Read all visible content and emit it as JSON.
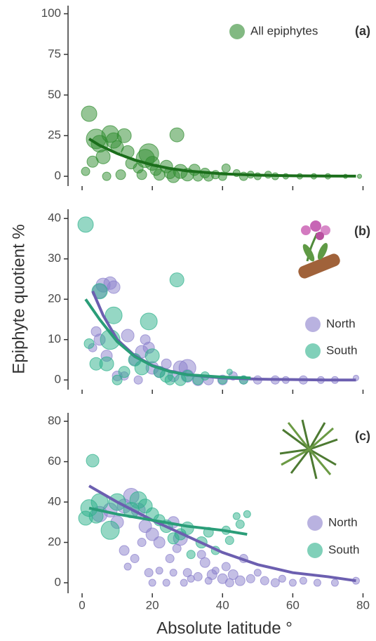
{
  "chart_data": [
    {
      "type": "scatter",
      "label": "(a)",
      "xlim": [
        -4,
        82.5
      ],
      "xticks": [
        0,
        20,
        40,
        60,
        80
      ],
      "show_xticklabels": false,
      "ylim": [
        -6,
        105
      ],
      "yticks": [
        0,
        25,
        50,
        75,
        100
      ],
      "legend": "top-right",
      "series": [
        {
          "name": "All epiphytes",
          "color": "#2e8b2e",
          "x": [
            2,
            4,
            5,
            3,
            6,
            8,
            9,
            10,
            12,
            13,
            14,
            16,
            18,
            19,
            20,
            21,
            22,
            24,
            25,
            27,
            28,
            30,
            32,
            33,
            35,
            38,
            40,
            41,
            44,
            46,
            48,
            50,
            53,
            55,
            58,
            62,
            66,
            70,
            75,
            79,
            1,
            7,
            11,
            17,
            26,
            36
          ],
          "values": [
            38.5,
            23,
            20,
            9,
            12,
            26,
            22,
            18,
            25,
            15,
            8,
            5,
            11,
            14,
            8,
            4,
            1,
            6,
            2,
            25.5,
            3,
            1,
            4,
            0,
            2,
            1,
            0,
            5,
            2,
            0,
            1,
            0,
            1,
            0,
            0,
            0,
            0,
            0,
            0,
            0,
            3,
            0,
            1,
            1,
            0,
            0
          ],
          "sizes": [
            11,
            14,
            12,
            8,
            10,
            12,
            11,
            9,
            10,
            9,
            8,
            7,
            13,
            14,
            10,
            8,
            8,
            9,
            8,
            10,
            10,
            9,
            8,
            7,
            7,
            6,
            6,
            6,
            5,
            6,
            5,
            5,
            5,
            5,
            4,
            4,
            4,
            4,
            3,
            3,
            6,
            6,
            7,
            7,
            9,
            7
          ],
          "fit": {
            "color": "#1b6e1b",
            "x": [
              2,
              5,
              10,
              15,
              20,
              25,
              30,
              40,
              50,
              60,
              70,
              78
            ],
            "values": [
              23,
              19,
              14,
              10,
              7,
              4.8,
              3.3,
              1.5,
              0.7,
              0.3,
              0.15,
              0.1
            ]
          }
        }
      ]
    },
    {
      "type": "scatter",
      "label": "(b)",
      "ylabel": "Epiphyte quotient %",
      "xlim": [
        -4,
        82.5
      ],
      "xticks": [
        0,
        20,
        40,
        60,
        80
      ],
      "show_xticklabels": false,
      "ylim": [
        -2.4,
        42.3
      ],
      "yticks": [
        0,
        10,
        20,
        30,
        40
      ],
      "legend": "right",
      "series": [
        {
          "name": "North",
          "color": "#8a7fcc",
          "x": [
            5,
            6,
            8,
            9,
            4,
            5,
            7,
            3,
            10,
            13,
            15,
            17,
            18,
            19,
            20,
            22,
            24,
            26,
            28,
            30,
            33,
            36,
            40,
            43,
            46,
            50,
            55,
            58,
            63,
            68,
            72,
            78,
            12,
            16,
            30
          ],
          "values": [
            22,
            23.5,
            24,
            23,
            12,
            10,
            6,
            8,
            1,
            11,
            5,
            7,
            10,
            8,
            3,
            2,
            4,
            1,
            3,
            1,
            0,
            0,
            0,
            1,
            0,
            0,
            0,
            0,
            0,
            0,
            0,
            0.5,
            1,
            0,
            3
          ],
          "sizes": [
            10,
            10,
            9,
            9,
            7,
            8,
            8,
            6,
            7,
            9,
            8,
            9,
            7,
            8,
            9,
            8,
            7,
            8,
            10,
            9,
            8,
            7,
            7,
            6,
            6,
            6,
            6,
            5,
            6,
            5,
            5,
            4,
            6,
            6,
            12
          ],
          "fit": {
            "color": "#6c5fb0",
            "x": [
              3,
              6,
              10,
              15,
              20,
              25,
              30,
              40,
              50,
              60,
              70,
              78
            ],
            "values": [
              22,
              16,
              10,
              6,
              3.6,
              2.2,
              1.3,
              0.5,
              0.2,
              0.1,
              0,
              0
            ]
          }
        },
        {
          "name": "South",
          "color": "#2bb08a",
          "x": [
            1,
            27,
            5,
            9,
            4,
            7,
            8,
            12,
            15,
            17,
            19,
            20,
            22,
            24,
            25,
            28,
            30,
            33,
            35,
            40,
            42,
            46,
            2,
            10
          ],
          "values": [
            38.5,
            24.8,
            22,
            16,
            4,
            4,
            10,
            2,
            5,
            3,
            14.5,
            6,
            2,
            1,
            0,
            0,
            1,
            0,
            1,
            0,
            2,
            0,
            9,
            0
          ],
          "sizes": [
            11,
            10,
            11,
            12,
            9,
            10,
            14,
            8,
            9,
            10,
            12,
            10,
            8,
            9,
            7,
            8,
            8,
            7,
            6,
            6,
            4,
            6,
            7,
            7
          ],
          "fit": {
            "color": "#2a9d78",
            "x": [
              1,
              5,
              10,
              15,
              20,
              25,
              30,
              40,
              48
            ],
            "values": [
              20,
              15,
              9.5,
              5.8,
              3.5,
              2.1,
              1.3,
              0.7,
              0.5
            ]
          }
        }
      ]
    },
    {
      "type": "scatter",
      "label": "(c)",
      "xlabel": "Absolute latitude °",
      "xlim": [
        -4,
        82.5
      ],
      "xticks": [
        0,
        20,
        40,
        60,
        80
      ],
      "show_xticklabels": true,
      "ylim": [
        -5.2,
        84.2
      ],
      "yticks": [
        0,
        20,
        40,
        60,
        80
      ],
      "legend": "right",
      "series": [
        {
          "name": "North",
          "color": "#8a7fcc",
          "x": [
            5,
            8,
            10,
            12,
            14,
            16,
            18,
            20,
            22,
            12,
            15,
            13,
            17,
            19,
            20,
            22,
            24,
            25,
            26,
            27,
            28,
            29,
            30,
            31,
            33,
            34,
            35,
            36,
            37,
            38,
            40,
            41,
            42,
            43,
            45,
            46,
            48,
            50,
            52,
            55,
            57,
            60,
            63,
            67,
            72,
            78,
            26
          ],
          "values": [
            34,
            36,
            30,
            38,
            43,
            36,
            28,
            24,
            20,
            16,
            12,
            8,
            20,
            5,
            0,
            6,
            0,
            12,
            5,
            17,
            22,
            0,
            5,
            2,
            3,
            14,
            10,
            1,
            4,
            6,
            2,
            8,
            0,
            4,
            1,
            12,
            2,
            5,
            1,
            0,
            2,
            0,
            1,
            0,
            0,
            1,
            30
          ],
          "sizes": [
            11,
            10,
            9,
            10,
            11,
            10,
            9,
            9,
            8,
            7,
            6,
            5,
            6,
            6,
            5,
            5,
            5,
            6,
            5,
            6,
            10,
            5,
            6,
            5,
            6,
            6,
            7,
            5,
            7,
            5,
            7,
            6,
            6,
            7,
            7,
            6,
            6,
            5,
            6,
            6,
            5,
            5,
            5,
            5,
            5,
            5,
            8
          ],
          "fit": {
            "color": "#6c5fb0",
            "x": [
              2,
              10,
              20,
              30,
              40,
              50,
              60,
              70,
              78
            ],
            "values": [
              48,
              40,
              31,
              23,
              15,
              9,
              5,
              3,
              1
            ]
          }
        },
        {
          "name": "South",
          "color": "#2bb08a",
          "x": [
            1,
            2,
            3,
            5,
            4,
            8,
            10,
            14,
            16,
            18,
            20,
            22,
            24,
            26,
            28,
            30,
            31,
            34,
            36,
            38,
            41,
            42,
            44,
            45,
            47
          ],
          "values": [
            32,
            37,
            60.5,
            40,
            33,
            26,
            40,
            36,
            41,
            38,
            34,
            31,
            28,
            22,
            24,
            27,
            14,
            20,
            25,
            16,
            26,
            21,
            33,
            29,
            34
          ],
          "sizes": [
            10,
            12,
            9,
            12,
            10,
            13,
            12,
            11,
            12,
            10,
            9,
            8,
            9,
            8,
            8,
            9,
            6,
            8,
            7,
            6,
            6,
            6,
            5,
            6,
            5
          ],
          "fit": {
            "color": "#2a9d78",
            "x": [
              2,
              10,
              20,
              30,
              40,
              47
            ],
            "values": [
              37,
              34,
              31,
              28,
              26,
              24
            ]
          }
        }
      ]
    }
  ]
}
